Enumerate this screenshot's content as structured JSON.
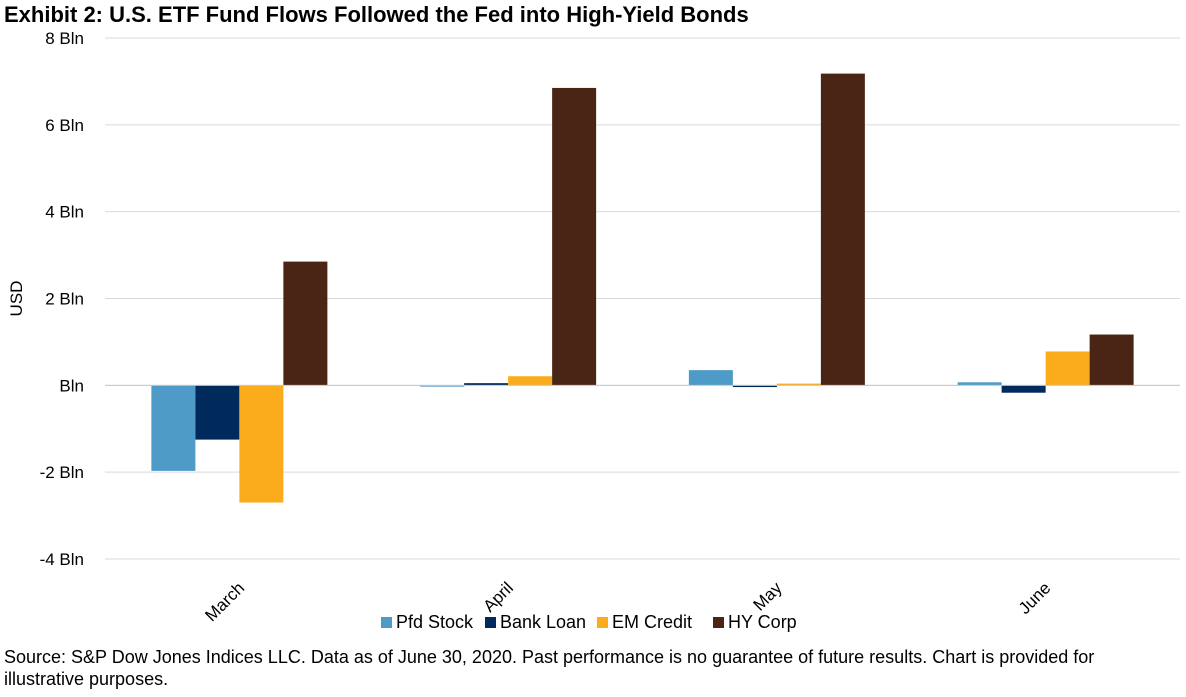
{
  "title": "Exhibit 2: U.S. ETF Fund Flows Followed the Fed into High-Yield Bonds",
  "source_note": "Source: S&P Dow Jones Indices LLC. Data as of June 30, 2020. Past performance is no guarantee of future results. Chart is provided for illustrative purposes.",
  "chart_data": {
    "type": "bar",
    "title": "Exhibit 2: U.S. ETF Fund Flows Followed the Fed into High-Yield Bonds",
    "xlabel": "",
    "ylabel": "USD",
    "ylim": [
      -4,
      8
    ],
    "yticks": [
      -4,
      -2,
      0,
      2,
      4,
      6,
      8
    ],
    "ytick_labels": [
      "-4 Bln",
      "-2 Bln",
      "Bln",
      "2 Bln",
      "4 Bln",
      "6 Bln",
      "8 Bln"
    ],
    "categories": [
      "March",
      "April",
      "May",
      "June"
    ],
    "series": [
      {
        "name": "Pfd Stock",
        "color": "#4f9bc8",
        "values": [
          -1.97,
          -0.03,
          0.35,
          0.07
        ]
      },
      {
        "name": "Bank Loan",
        "color": "#002a5c",
        "values": [
          -1.25,
          0.05,
          -0.04,
          -0.17
        ]
      },
      {
        "name": "EM Credit",
        "color": "#fbac1c",
        "values": [
          -2.7,
          0.21,
          0.04,
          0.78
        ]
      },
      {
        "name": "HY Corp",
        "color": "#4a2515",
        "values": [
          2.85,
          6.85,
          7.18,
          1.17
        ]
      }
    ],
    "grid": true,
    "legend": "bottom"
  }
}
